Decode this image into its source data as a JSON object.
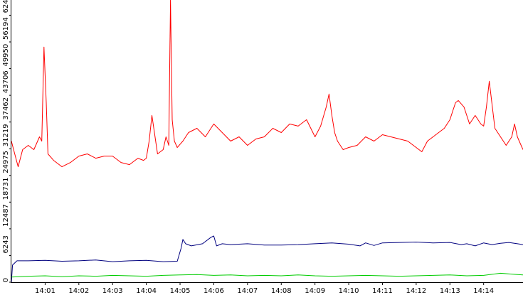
{
  "chart_data": {
    "type": "line",
    "title": "",
    "xlabel": "",
    "ylabel": "",
    "grid": false,
    "legend": "none",
    "xlim": [
      "14:00:00",
      "14:15:10"
    ],
    "ylim": [
      0,
      66000
    ],
    "x_ticks": [
      "14:01",
      "14:02",
      "14:03",
      "14:04",
      "14:05",
      "14:06",
      "14:07",
      "14:08",
      "14:09",
      "14:10",
      "14:11",
      "14:12",
      "14:13",
      "14:14"
    ],
    "y_ticks": [
      0,
      6243,
      12487,
      18731,
      24975,
      31219,
      37462,
      43706,
      49950,
      56194,
      62438
    ],
    "series": [
      {
        "color": "#ff0000",
        "x": [
          "14:00:00",
          "14:00:06",
          "14:00:12",
          "14:00:20",
          "14:00:30",
          "14:00:40",
          "14:00:50",
          "14:00:54",
          "14:00:58",
          "14:01:02",
          "14:01:05",
          "14:01:15",
          "14:01:30",
          "14:01:45",
          "14:02:00",
          "14:02:15",
          "14:02:30",
          "14:02:45",
          "14:03:00",
          "14:03:15",
          "14:03:30",
          "14:03:45",
          "14:03:55",
          "14:04:00",
          "14:04:05",
          "14:04:10",
          "14:04:20",
          "14:04:30",
          "14:04:35",
          "14:04:40",
          "14:04:43",
          "14:04:46",
          "14:04:50",
          "14:04:55",
          "14:05:05",
          "14:05:15",
          "14:05:30",
          "14:05:45",
          "14:06:00",
          "14:06:15",
          "14:06:30",
          "14:06:45",
          "14:07:00",
          "14:07:15",
          "14:07:30",
          "14:07:45",
          "14:08:00",
          "14:08:15",
          "14:08:30",
          "14:08:45",
          "14:09:00",
          "14:09:10",
          "14:09:20",
          "14:09:25",
          "14:09:30",
          "14:09:35",
          "14:09:40",
          "14:09:50",
          "14:10:00",
          "14:10:15",
          "14:10:30",
          "14:10:45",
          "14:11:00",
          "14:11:15",
          "14:11:30",
          "14:11:45",
          "14:12:00",
          "14:12:10",
          "14:12:20",
          "14:12:35",
          "14:12:50",
          "14:13:00",
          "14:13:05",
          "14:13:10",
          "14:13:15",
          "14:13:25",
          "14:13:35",
          "14:13:45",
          "14:13:55",
          "14:14:00",
          "14:14:05",
          "14:14:10",
          "14:14:20",
          "14:14:30",
          "14:14:40",
          "14:14:50",
          "14:14:55",
          "14:15:00",
          "14:15:05",
          "14:15:10"
        ],
        "values": [
          33000,
          30000,
          27000,
          31000,
          32000,
          31000,
          34000,
          33000,
          55000,
          42000,
          30000,
          28500,
          27000,
          28000,
          29500,
          30000,
          29000,
          29500,
          29500,
          28000,
          27500,
          29000,
          28500,
          29000,
          33000,
          39000,
          30000,
          31000,
          34000,
          32000,
          66000,
          38000,
          33000,
          31500,
          33000,
          35000,
          36000,
          34000,
          37000,
          35000,
          33000,
          34000,
          32000,
          33500,
          34000,
          36000,
          35000,
          37000,
          36500,
          38000,
          34000,
          36500,
          41000,
          44000,
          39000,
          35000,
          33000,
          31000,
          31500,
          32000,
          34000,
          33000,
          34500,
          34000,
          33500,
          33000,
          31500,
          30500,
          33000,
          34500,
          36000,
          38000,
          40000,
          42000,
          42500,
          41000,
          37000,
          39000,
          37000,
          36500,
          41000,
          47000,
          36000,
          34000,
          32000,
          34000,
          37000,
          34000,
          32500,
          31000
        ]
      },
      {
        "color": "#00007f",
        "x": [
          "14:00:00",
          "14:00:02",
          "14:00:10",
          "14:00:30",
          "14:01:00",
          "14:01:30",
          "14:02:00",
          "14:02:30",
          "14:03:00",
          "14:03:30",
          "14:04:00",
          "14:04:30",
          "14:04:55",
          "14:05:02",
          "14:05:05",
          "14:05:10",
          "14:05:20",
          "14:05:40",
          "14:05:55",
          "14:06:00",
          "14:06:05",
          "14:06:15",
          "14:06:30",
          "14:07:00",
          "14:07:30",
          "14:08:00",
          "14:08:30",
          "14:09:00",
          "14:09:30",
          "14:10:00",
          "14:10:20",
          "14:10:30",
          "14:10:45",
          "14:11:00",
          "14:11:30",
          "14:12:00",
          "14:12:30",
          "14:13:00",
          "14:13:20",
          "14:13:30",
          "14:13:45",
          "14:14:00",
          "14:14:15",
          "14:14:30",
          "14:14:45",
          "14:15:00",
          "14:15:10"
        ],
        "values": [
          0,
          4000,
          5000,
          5000,
          5100,
          4900,
          5000,
          5200,
          4800,
          5000,
          5100,
          4800,
          4900,
          8000,
          10000,
          9000,
          8500,
          9000,
          10500,
          10800,
          8500,
          9000,
          8800,
          9000,
          8700,
          8700,
          8800,
          9000,
          9200,
          8900,
          8500,
          9200,
          8600,
          9200,
          9300,
          9400,
          9200,
          9300,
          8800,
          9000,
          8500,
          9200,
          8800,
          9100,
          9300,
          9000,
          8800
        ]
      },
      {
        "color": "#00cc00",
        "x": [
          "14:00:00",
          "14:00:30",
          "14:01:00",
          "14:01:30",
          "14:02:00",
          "14:02:30",
          "14:03:00",
          "14:03:30",
          "14:04:00",
          "14:04:30",
          "14:05:00",
          "14:05:30",
          "14:06:00",
          "14:06:30",
          "14:07:00",
          "14:07:30",
          "14:08:00",
          "14:08:30",
          "14:09:00",
          "14:09:30",
          "14:10:00",
          "14:10:30",
          "14:11:00",
          "14:11:30",
          "14:12:00",
          "14:12:30",
          "14:13:00",
          "14:13:30",
          "14:14:00",
          "14:14:30",
          "14:15:00",
          "14:15:10"
        ],
        "values": [
          1200,
          1400,
          1500,
          1300,
          1500,
          1400,
          1600,
          1500,
          1400,
          1600,
          1700,
          1800,
          1600,
          1700,
          1500,
          1600,
          1500,
          1700,
          1500,
          1400,
          1500,
          1600,
          1500,
          1400,
          1500,
          1600,
          1700,
          1500,
          1600,
          2100,
          1800,
          1700
        ]
      }
    ]
  }
}
